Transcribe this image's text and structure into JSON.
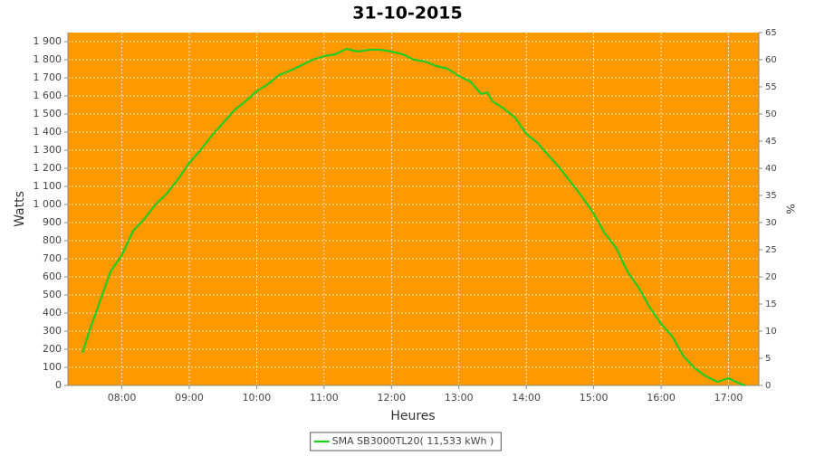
{
  "chart_data": {
    "type": "line",
    "title": "31-10-2015",
    "x_label": "Heures",
    "y_label": "Watts",
    "y2_label": "%",
    "x": [
      "07:25",
      "07:30",
      "07:40",
      "07:50",
      "08:00",
      "08:10",
      "08:20",
      "08:30",
      "08:40",
      "08:50",
      "09:00",
      "09:10",
      "09:20",
      "09:30",
      "09:40",
      "09:50",
      "10:00",
      "10:10",
      "10:20",
      "10:30",
      "10:40",
      "10:50",
      "11:00",
      "11:10",
      "11:20",
      "11:30",
      "11:40",
      "11:50",
      "12:00",
      "12:10",
      "12:20",
      "12:30",
      "12:40",
      "12:50",
      "13:00",
      "13:10",
      "13:20",
      "13:25",
      "13:30",
      "13:40",
      "13:50",
      "14:00",
      "14:10",
      "14:20",
      "14:30",
      "14:40",
      "14:50",
      "15:00",
      "15:10",
      "15:20",
      "15:30",
      "15:40",
      "15:50",
      "16:00",
      "16:10",
      "16:20",
      "16:30",
      "16:40",
      "16:50",
      "17:00",
      "17:10",
      "17:15"
    ],
    "series": [
      {
        "name": "SMA SB3000TL20( 11,533 kWh )",
        "color": "#22cc22",
        "values": [
          180,
          280,
          455,
          630,
          720,
          855,
          920,
          1000,
          1060,
          1140,
          1230,
          1300,
          1380,
          1450,
          1520,
          1570,
          1625,
          1665,
          1715,
          1740,
          1770,
          1800,
          1820,
          1830,
          1860,
          1845,
          1855,
          1855,
          1845,
          1830,
          1800,
          1790,
          1765,
          1750,
          1710,
          1680,
          1610,
          1620,
          1570,
          1530,
          1480,
          1390,
          1340,
          1270,
          1200,
          1120,
          1040,
          950,
          840,
          760,
          630,
          540,
          430,
          340,
          270,
          160,
          95,
          50,
          20,
          40,
          10,
          0
        ]
      }
    ],
    "xlim": [
      "07:12",
      "17:27"
    ],
    "xticks": [
      "08:00",
      "09:00",
      "10:00",
      "11:00",
      "12:00",
      "13:00",
      "14:00",
      "15:00",
      "16:00",
      "17:00"
    ],
    "ylim": [
      0,
      1950
    ],
    "yticks": [
      0,
      100,
      200,
      300,
      400,
      500,
      600,
      700,
      800,
      900,
      {
        "value": 1000,
        "label": "1 000"
      },
      {
        "value": 1100,
        "label": "1 100"
      },
      {
        "value": 1200,
        "label": "1 200"
      },
      {
        "value": 1300,
        "label": "1 300"
      },
      {
        "value": 1400,
        "label": "1 400"
      },
      {
        "value": 1500,
        "label": "1 500"
      },
      {
        "value": 1600,
        "label": "1 600"
      },
      {
        "value": 1700,
        "label": "1 700"
      },
      {
        "value": 1800,
        "label": "1 800"
      },
      {
        "value": 1900,
        "label": "1 900"
      }
    ],
    "y2lim": [
      0,
      65
    ],
    "y2ticks": [
      0,
      5,
      10,
      15,
      20,
      25,
      30,
      35,
      40,
      45,
      50,
      55,
      60,
      65
    ],
    "grid": true,
    "plot_background": "#ff9900",
    "legend": "bottom"
  }
}
